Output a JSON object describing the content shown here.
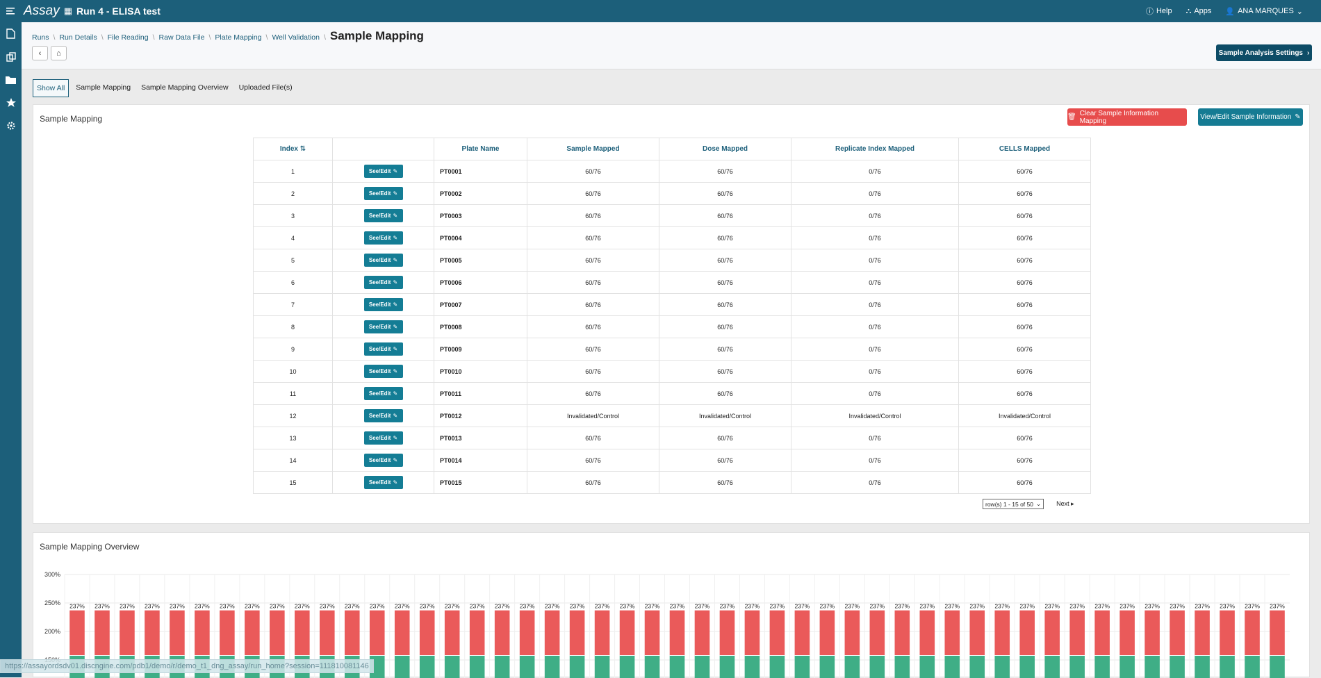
{
  "topbar": {
    "brand": "Assay",
    "run_title": "Run 4 - ELISA test",
    "help": "Help",
    "apps": "Apps",
    "user": "ANA MARQUES"
  },
  "breadcrumbs": [
    "Runs",
    "Run Details",
    "File Reading",
    "Raw Data File",
    "Plate Mapping",
    "Well Validation"
  ],
  "page_title": "Sample Mapping",
  "settings_button": "Sample Analysis Settings",
  "tabs": [
    "Show All",
    "Sample Mapping",
    "Sample Mapping Overview",
    "Uploaded File(s)"
  ],
  "mapping": {
    "title": "Sample Mapping",
    "clear_button": "Clear Sample Information Mapping",
    "view_button": "View/Edit Sample Information",
    "columns": [
      "Index",
      "",
      "Plate Name",
      "Sample Mapped",
      "Dose Mapped",
      "Replicate Index Mapped",
      "CELLS Mapped"
    ],
    "see_edit_label": "See/Edit",
    "rows": [
      {
        "index": "1",
        "plate": "PT0001",
        "sample": "60/76",
        "dose": "60/76",
        "replicate": "0/76",
        "cells": "60/76"
      },
      {
        "index": "2",
        "plate": "PT0002",
        "sample": "60/76",
        "dose": "60/76",
        "replicate": "0/76",
        "cells": "60/76"
      },
      {
        "index": "3",
        "plate": "PT0003",
        "sample": "60/76",
        "dose": "60/76",
        "replicate": "0/76",
        "cells": "60/76"
      },
      {
        "index": "4",
        "plate": "PT0004",
        "sample": "60/76",
        "dose": "60/76",
        "replicate": "0/76",
        "cells": "60/76"
      },
      {
        "index": "5",
        "plate": "PT0005",
        "sample": "60/76",
        "dose": "60/76",
        "replicate": "0/76",
        "cells": "60/76"
      },
      {
        "index": "6",
        "plate": "PT0006",
        "sample": "60/76",
        "dose": "60/76",
        "replicate": "0/76",
        "cells": "60/76"
      },
      {
        "index": "7",
        "plate": "PT0007",
        "sample": "60/76",
        "dose": "60/76",
        "replicate": "0/76",
        "cells": "60/76"
      },
      {
        "index": "8",
        "plate": "PT0008",
        "sample": "60/76",
        "dose": "60/76",
        "replicate": "0/76",
        "cells": "60/76"
      },
      {
        "index": "9",
        "plate": "PT0009",
        "sample": "60/76",
        "dose": "60/76",
        "replicate": "0/76",
        "cells": "60/76"
      },
      {
        "index": "10",
        "plate": "PT0010",
        "sample": "60/76",
        "dose": "60/76",
        "replicate": "0/76",
        "cells": "60/76"
      },
      {
        "index": "11",
        "plate": "PT0011",
        "sample": "60/76",
        "dose": "60/76",
        "replicate": "0/76",
        "cells": "60/76"
      },
      {
        "index": "12",
        "plate": "PT0012",
        "sample": "Invalidated/Control",
        "dose": "Invalidated/Control",
        "replicate": "Invalidated/Control",
        "cells": "Invalidated/Control"
      },
      {
        "index": "13",
        "plate": "PT0013",
        "sample": "60/76",
        "dose": "60/76",
        "replicate": "0/76",
        "cells": "60/76"
      },
      {
        "index": "14",
        "plate": "PT0014",
        "sample": "60/76",
        "dose": "60/76",
        "replicate": "0/76",
        "cells": "60/76"
      },
      {
        "index": "15",
        "plate": "PT0015",
        "sample": "60/76",
        "dose": "60/76",
        "replicate": "0/76",
        "cells": "60/76"
      }
    ],
    "pager_select": "row(s) 1 - 15 of 50",
    "next": "Next"
  },
  "overview": {
    "title": "Sample Mapping Overview"
  },
  "chart_data": {
    "type": "bar",
    "stacked": true,
    "ytick_labels": [
      "150%",
      "200%",
      "250%",
      "300%"
    ],
    "ylim": [
      150,
      300
    ],
    "bar_count": 49,
    "bar_label": "237%",
    "total_value": 237,
    "series": [
      {
        "color": "#3fae86",
        "value": 158
      },
      {
        "color": "#ea5a5a",
        "value": 79
      }
    ],
    "grid": true
  },
  "statusbar": {
    "url": "https://assayordsdv01.discngine.com/pdb1/demo/r/demo_t1_dng_assay/run_home?session=111810081146"
  },
  "colors": {
    "primary": "#1c5f7a",
    "accent": "#157b93",
    "danger": "#e74c4c"
  }
}
